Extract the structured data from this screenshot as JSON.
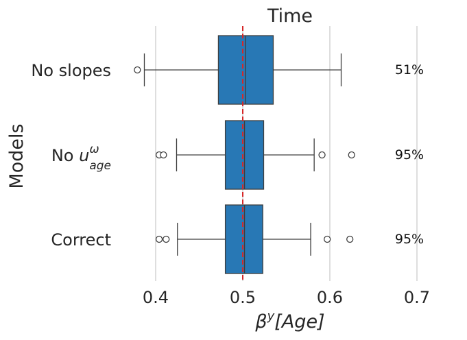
{
  "chart_data": {
    "type": "boxplot",
    "orientation": "horizontal",
    "title": "Time",
    "xlabel": "β^y[Age]",
    "ylabel": "Models",
    "xlim": [
      0.3,
      0.73
    ],
    "xticks": [
      "0.4",
      "0.5",
      "0.6",
      "0.7"
    ],
    "xtick_values": [
      0.4,
      0.5,
      0.6,
      0.7
    ],
    "grid": "vertical",
    "reference_line": {
      "x": 0.5,
      "color": "#d62728",
      "style": "dashed"
    },
    "box_color": "#2878b5",
    "categories": [
      {
        "label": "No slopes",
        "whisker_low": 0.387,
        "q1": 0.472,
        "median": 0.503,
        "q3": 0.535,
        "whisker_high": 0.613,
        "outliers": [
          0.379
        ],
        "coverage": "51%"
      },
      {
        "label": "No u_age^ω",
        "label_main": "No ",
        "label_var": "u",
        "label_sub": "age",
        "label_sup": "ω",
        "whisker_low": 0.424,
        "q1": 0.48,
        "median": 0.502,
        "q3": 0.524,
        "whisker_high": 0.582,
        "outliers": [
          0.404,
          0.409,
          0.591,
          0.625
        ],
        "coverage": "95%"
      },
      {
        "label": "Correct",
        "whisker_low": 0.425,
        "q1": 0.48,
        "median": 0.502,
        "q3": 0.523,
        "whisker_high": 0.578,
        "outliers": [
          0.404,
          0.412,
          0.597,
          0.623
        ],
        "coverage": "95%"
      }
    ]
  }
}
